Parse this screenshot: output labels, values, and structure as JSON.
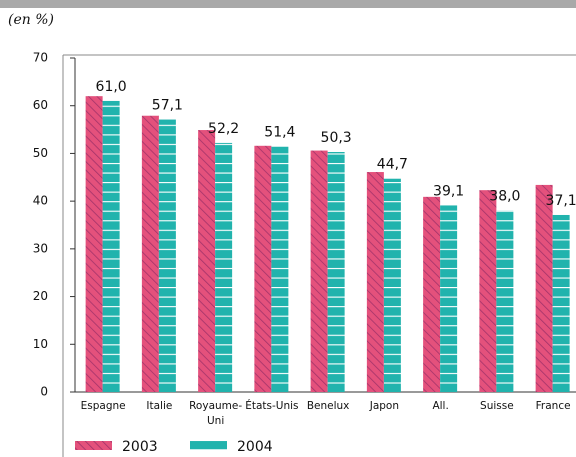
{
  "chart_data": {
    "type": "bar",
    "subtitle": "(en %)",
    "categories": [
      "Espagne",
      "Italie",
      "Royaume-Uni",
      "États-Unis",
      "Benelux",
      "Japon",
      "All.",
      "Suisse",
      "France"
    ],
    "series": [
      {
        "name": "2003",
        "color": "#e4517c",
        "values": [
          62.0,
          57.9,
          54.9,
          51.6,
          50.6,
          46.1,
          40.9,
          42.3,
          43.4
        ]
      },
      {
        "name": "2004",
        "color": "#21b3ad",
        "values": [
          61.0,
          57.1,
          52.2,
          51.4,
          50.3,
          44.7,
          39.1,
          38.0,
          37.1
        ],
        "value_labels": [
          "61,0",
          "57,1",
          "52,2",
          "51,4",
          "50,3",
          "44,7",
          "39,1",
          "38,0",
          "37,1"
        ]
      }
    ],
    "ylim": [
      0,
      70
    ],
    "yticks": [
      0,
      10,
      20,
      30,
      40,
      50,
      60,
      70
    ]
  }
}
